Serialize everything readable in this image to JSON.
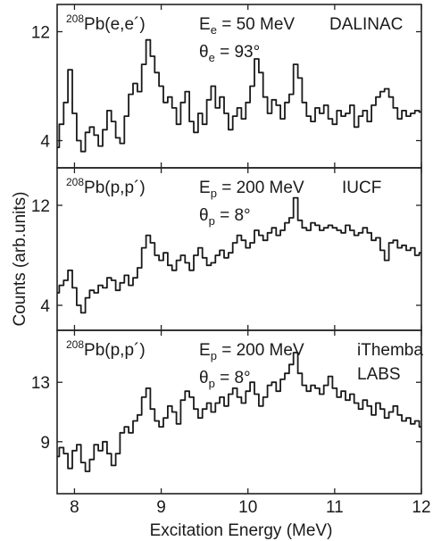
{
  "chart_data": {
    "type": "line",
    "ylabel": "Counts (arb.units)",
    "xlabel": "Excitation Energy (MeV)",
    "xlim": [
      7.8,
      12.0
    ],
    "xticks": [
      "8",
      "9",
      "10",
      "11",
      "12"
    ],
    "panels": [
      {
        "reaction_sup": "208",
        "reaction": "Pb(e,e´)",
        "energy_text": "E",
        "energy_sub": "e",
        "energy_value": " = 50 MeV",
        "angle_text": "θ",
        "angle_sub": "e",
        "angle_value": " = 93°",
        "facility": [
          "DALINAC"
        ],
        "ylim": [
          2,
          14
        ],
        "yticks": [
          4,
          12
        ],
        "series": [
          {
            "x": [
              7.8,
              7.85,
              7.9,
              7.95,
              8.0,
              8.05,
              8.1,
              8.15,
              8.2,
              8.25,
              8.3,
              8.35,
              8.4,
              8.45,
              8.5,
              8.55,
              8.6,
              8.65,
              8.7,
              8.75,
              8.8,
              8.85,
              8.9,
              8.95,
              9.0,
              9.05,
              9.1,
              9.15,
              9.2,
              9.25,
              9.3,
              9.35,
              9.4,
              9.45,
              9.5,
              9.55,
              9.6,
              9.65,
              9.7,
              9.75,
              9.8,
              9.85,
              9.9,
              9.95,
              10.0,
              10.05,
              10.1,
              10.15,
              10.2,
              10.25,
              10.3,
              10.35,
              10.4,
              10.45,
              10.5,
              10.55,
              10.6,
              10.65,
              10.7,
              10.75,
              10.8,
              10.85,
              10.9,
              10.95,
              11.0,
              11.05,
              11.1,
              11.15,
              11.2,
              11.25,
              11.3,
              11.35,
              11.4,
              11.45,
              11.5,
              11.55,
              11.6,
              11.65,
              11.7,
              11.75,
              11.8,
              11.85,
              11.9,
              11.95,
              12.0
            ],
            "values": [
              3.5,
              5.2,
              6.8,
              9.2,
              6.0,
              4.0,
              3.2,
              4.6,
              5.0,
              4.4,
              3.6,
              4.8,
              6.2,
              5.4,
              4.2,
              3.8,
              5.8,
              7.4,
              8.2,
              7.6,
              9.6,
              11.4,
              10.2,
              9.0,
              8.0,
              6.8,
              7.2,
              6.4,
              5.2,
              6.8,
              7.6,
              5.4,
              4.6,
              6.0,
              5.2,
              7.0,
              8.0,
              6.4,
              7.2,
              6.0,
              4.8,
              5.8,
              6.4,
              5.6,
              6.8,
              8.0,
              10.0,
              9.0,
              7.2,
              6.0,
              7.0,
              6.6,
              5.6,
              6.8,
              7.4,
              9.6,
              8.6,
              6.8,
              5.8,
              5.4,
              6.4,
              6.0,
              6.6,
              5.6,
              5.2,
              6.2,
              5.8,
              6.0,
              6.6,
              5.0,
              5.8,
              6.2,
              5.4,
              6.6,
              7.2,
              7.6,
              7.8,
              7.2,
              6.4,
              5.6,
              6.2,
              5.8,
              6.0,
              6.2,
              6.1
            ]
          }
        ]
      },
      {
        "reaction_sup": "208",
        "reaction": "Pb(p,p´)",
        "energy_text": "E",
        "energy_sub": "p",
        "energy_value": " = 200 MeV",
        "angle_text": "θ",
        "angle_sub": "p",
        "angle_value": " = 8°",
        "facility": [
          "IUCF"
        ],
        "ylim": [
          2,
          15
        ],
        "yticks": [
          4,
          12
        ],
        "series": [
          {
            "x": [
              7.8,
              7.85,
              7.9,
              7.95,
              8.0,
              8.05,
              8.1,
              8.15,
              8.2,
              8.25,
              8.3,
              8.35,
              8.4,
              8.45,
              8.5,
              8.55,
              8.6,
              8.65,
              8.7,
              8.75,
              8.8,
              8.85,
              8.9,
              8.95,
              9.0,
              9.05,
              9.1,
              9.15,
              9.2,
              9.25,
              9.3,
              9.35,
              9.4,
              9.45,
              9.5,
              9.55,
              9.6,
              9.65,
              9.7,
              9.75,
              9.8,
              9.85,
              9.9,
              9.95,
              10.0,
              10.05,
              10.1,
              10.15,
              10.2,
              10.25,
              10.3,
              10.35,
              10.4,
              10.45,
              10.5,
              10.55,
              10.6,
              10.65,
              10.7,
              10.75,
              10.8,
              10.85,
              10.9,
              10.95,
              11.0,
              11.05,
              11.1,
              11.15,
              11.2,
              11.25,
              11.3,
              11.35,
              11.4,
              11.45,
              11.5,
              11.55,
              11.6,
              11.65,
              11.7,
              11.75,
              11.8,
              11.85,
              11.9,
              11.95,
              12.0
            ],
            "values": [
              5.0,
              5.6,
              6.0,
              6.8,
              5.4,
              4.0,
              3.4,
              4.6,
              5.2,
              5.0,
              5.6,
              5.4,
              6.2,
              6.0,
              5.2,
              5.8,
              6.4,
              5.6,
              6.2,
              7.0,
              8.6,
              9.6,
              9.0,
              8.0,
              7.6,
              8.2,
              7.2,
              6.8,
              7.6,
              8.0,
              7.4,
              6.8,
              8.0,
              8.6,
              7.8,
              7.2,
              7.4,
              8.0,
              8.4,
              7.8,
              8.2,
              9.0,
              9.6,
              9.2,
              8.6,
              9.0,
              10.0,
              9.6,
              9.2,
              9.8,
              10.2,
              9.6,
              10.0,
              10.6,
              11.0,
              12.6,
              10.8,
              10.2,
              10.0,
              10.6,
              10.4,
              10.0,
              10.2,
              10.4,
              10.2,
              10.0,
              9.8,
              10.4,
              10.0,
              9.6,
              9.8,
              10.2,
              9.8,
              9.2,
              9.4,
              8.4,
              7.6,
              9.0,
              9.2,
              8.6,
              8.8,
              8.4,
              8.6,
              8.0,
              8.2
            ]
          }
        ]
      },
      {
        "reaction_sup": "208",
        "reaction": "Pb(p,p´)",
        "energy_text": "E",
        "energy_sub": "p",
        "energy_value": " = 200 MeV",
        "angle_text": "θ",
        "angle_sub": "p",
        "angle_value": " = 8°",
        "facility": [
          "iThemba",
          "LABS"
        ],
        "ylim": [
          5.5,
          16.5
        ],
        "yticks": [
          9,
          13
        ],
        "series": [
          {
            "x": [
              7.8,
              7.85,
              7.9,
              7.95,
              8.0,
              8.05,
              8.1,
              8.15,
              8.2,
              8.25,
              8.3,
              8.35,
              8.4,
              8.45,
              8.5,
              8.55,
              8.6,
              8.65,
              8.7,
              8.75,
              8.8,
              8.85,
              8.9,
              8.95,
              9.0,
              9.05,
              9.1,
              9.15,
              9.2,
              9.25,
              9.3,
              9.35,
              9.4,
              9.45,
              9.5,
              9.55,
              9.6,
              9.65,
              9.7,
              9.75,
              9.8,
              9.85,
              9.9,
              9.95,
              10.0,
              10.05,
              10.1,
              10.15,
              10.2,
              10.25,
              10.3,
              10.35,
              10.4,
              10.45,
              10.5,
              10.55,
              10.6,
              10.65,
              10.7,
              10.75,
              10.8,
              10.85,
              10.9,
              10.95,
              11.0,
              11.05,
              11.1,
              11.15,
              11.2,
              11.25,
              11.3,
              11.35,
              11.4,
              11.45,
              11.5,
              11.55,
              11.6,
              11.65,
              11.7,
              11.75,
              11.8,
              11.85,
              11.9,
              11.95,
              12.0
            ],
            "values": [
              8.0,
              8.6,
              8.2,
              7.2,
              8.4,
              8.8,
              7.6,
              7.0,
              7.8,
              8.8,
              8.4,
              9.0,
              8.2,
              7.4,
              8.2,
              9.6,
              10.0,
              9.6,
              10.4,
              10.8,
              12.0,
              12.6,
              11.2,
              10.4,
              10.0,
              10.6,
              11.4,
              11.0,
              10.2,
              11.8,
              12.4,
              12.0,
              11.2,
              10.6,
              11.2,
              11.6,
              11.0,
              11.6,
              12.0,
              11.4,
              12.2,
              12.6,
              12.0,
              11.6,
              12.4,
              13.0,
              12.2,
              11.4,
              12.0,
              12.8,
              13.0,
              12.4,
              13.2,
              13.6,
              14.2,
              15.0,
              13.6,
              12.8,
              12.4,
              12.8,
              12.6,
              12.2,
              12.8,
              13.4,
              12.6,
              12.0,
              12.4,
              11.8,
              12.2,
              11.6,
              11.2,
              11.8,
              11.4,
              10.8,
              11.6,
              11.2,
              10.6,
              11.0,
              11.4,
              10.8,
              10.4,
              10.6,
              10.2,
              10.4,
              10.0
            ]
          }
        ]
      }
    ]
  }
}
